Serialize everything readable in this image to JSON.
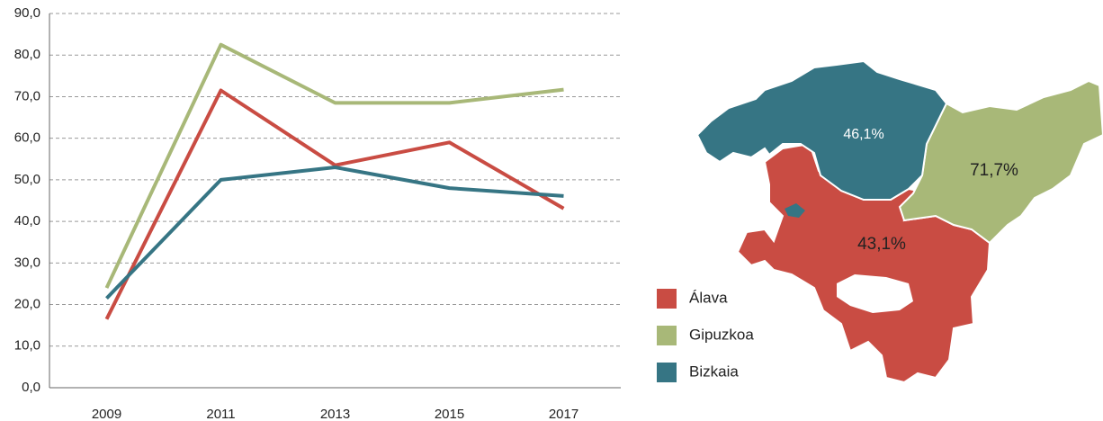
{
  "chart_data": [
    {
      "type": "line",
      "categories": [
        "2009",
        "2011",
        "2013",
        "2015",
        "2017"
      ],
      "series": [
        {
          "name": "Álava",
          "color": "#c94c43",
          "values": [
            16.5,
            71.5,
            53.5,
            59,
            43.1
          ]
        },
        {
          "name": "Gipuzkoa",
          "color": "#a8b878",
          "values": [
            24,
            82.5,
            68.5,
            68.5,
            71.7
          ]
        },
        {
          "name": "Bizkaia",
          "color": "#367584",
          "values": [
            21.5,
            50,
            53,
            48,
            46.1
          ]
        }
      ],
      "ylim": [
        0,
        90
      ],
      "yticks": [
        {
          "value": 0,
          "label": "0,0"
        },
        {
          "value": 10,
          "label": "10,0"
        },
        {
          "value": 20,
          "label": "20,0"
        },
        {
          "value": 30,
          "label": "30,0"
        },
        {
          "value": 40,
          "label": "40,0"
        },
        {
          "value": 50,
          "label": "50,0"
        },
        {
          "value": 60,
          "label": "60,0"
        },
        {
          "value": 70,
          "label": "70,0"
        },
        {
          "value": 80,
          "label": "80,0"
        },
        {
          "value": 90,
          "label": "90,0"
        }
      ],
      "grid": true
    },
    {
      "type": "map",
      "values": [
        43.1,
        71.7,
        46.1
      ],
      "value_labels": [
        "43,1%",
        "71,7%",
        "46,1%"
      ],
      "colors": [
        "#c94c43",
        "#a8b878",
        "#367584"
      ]
    }
  ]
}
